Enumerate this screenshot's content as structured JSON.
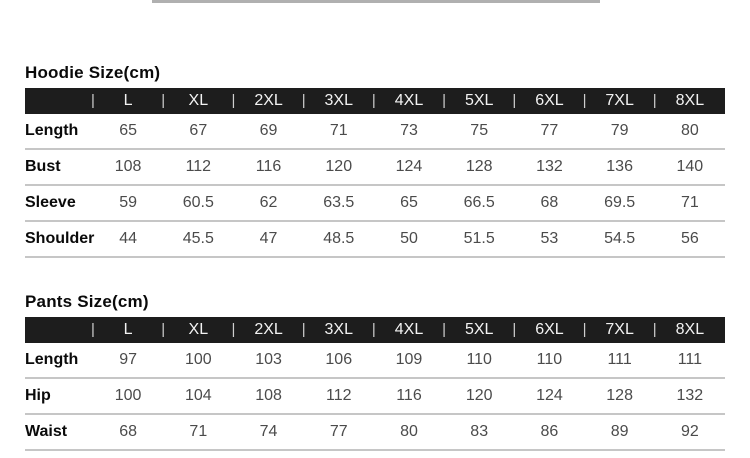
{
  "colors": {
    "header_bg": "#1d1d1d",
    "header_text": "#f2f2f2",
    "separator": "#cfcfcf",
    "label_text": "#0a0a0a",
    "value_text": "#4b4b4b",
    "row_line": "#c6c6c6",
    "divider": "#b0b0b0"
  },
  "separator_glyph": "|",
  "tables": [
    {
      "id": "hoodie",
      "title": "Hoodie Size(cm)",
      "sizes": [
        "L",
        "XL",
        "2XL",
        "3XL",
        "4XL",
        "5XL",
        "6XL",
        "7XL",
        "8XL"
      ],
      "rows": [
        {
          "label": "Length",
          "values": [
            "65",
            "67",
            "69",
            "71",
            "73",
            "75",
            "77",
            "79",
            "80"
          ]
        },
        {
          "label": "Bust",
          "values": [
            "108",
            "112",
            "116",
            "120",
            "124",
            "128",
            "132",
            "136",
            "140"
          ]
        },
        {
          "label": "Sleeve",
          "values": [
            "59",
            "60.5",
            "62",
            "63.5",
            "65",
            "66.5",
            "68",
            "69.5",
            "71"
          ]
        },
        {
          "label": "Shoulder",
          "values": [
            "44",
            "45.5",
            "47",
            "48.5",
            "50",
            "51.5",
            "53",
            "54.5",
            "56"
          ]
        }
      ]
    },
    {
      "id": "pants",
      "title": "Pants Size(cm)",
      "sizes": [
        "L",
        "XL",
        "2XL",
        "3XL",
        "4XL",
        "5XL",
        "6XL",
        "7XL",
        "8XL"
      ],
      "rows": [
        {
          "label": "Length",
          "values": [
            "97",
            "100",
            "103",
            "106",
            "109",
            "110",
            "110",
            "111",
            "111"
          ]
        },
        {
          "label": "Hip",
          "values": [
            "100",
            "104",
            "108",
            "112",
            "116",
            "120",
            "124",
            "128",
            "132"
          ]
        },
        {
          "label": "Waist",
          "values": [
            "68",
            "71",
            "74",
            "77",
            "80",
            "83",
            "86",
            "89",
            "92"
          ]
        }
      ]
    }
  ]
}
